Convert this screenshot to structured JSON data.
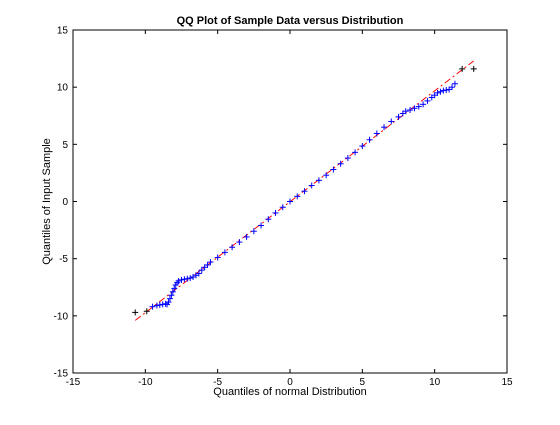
{
  "chart_data": {
    "type": "scatter",
    "title": "QQ Plot of Sample Data versus Distribution",
    "xlabel": "Quantiles of normal Distribution",
    "ylabel": "Quantiles of Input Sample",
    "xlim": [
      -15,
      15
    ],
    "ylim": [
      -15,
      15
    ],
    "xticks": [
      -15,
      -10,
      -5,
      0,
      5,
      10,
      15
    ],
    "yticks": [
      -15,
      -10,
      -5,
      0,
      5,
      10,
      15
    ],
    "grid": false,
    "series": [
      {
        "marker": "+",
        "color": "#0000ff",
        "points": [
          [
            -10.7,
            -9.7
          ],
          [
            -9.9,
            -9.6
          ],
          [
            -9.5,
            -9.2
          ],
          [
            -9.2,
            -9.1
          ],
          [
            -9.0,
            -9.05
          ],
          [
            -8.8,
            -9.0
          ],
          [
            -8.6,
            -8.95
          ],
          [
            -8.5,
            -9.0
          ],
          [
            -8.4,
            -8.8
          ],
          [
            -8.3,
            -8.5
          ],
          [
            -8.2,
            -8.2
          ],
          [
            -8.1,
            -7.9
          ],
          [
            -8.0,
            -7.6
          ],
          [
            -7.9,
            -7.3
          ],
          [
            -7.8,
            -7.1
          ],
          [
            -7.7,
            -6.95
          ],
          [
            -7.5,
            -6.85
          ],
          [
            -7.3,
            -6.8
          ],
          [
            -7.1,
            -6.75
          ],
          [
            -6.9,
            -6.7
          ],
          [
            -6.7,
            -6.6
          ],
          [
            -6.5,
            -6.45
          ],
          [
            -6.3,
            -6.3
          ],
          [
            -6.1,
            -6.0
          ],
          [
            -5.9,
            -5.75
          ],
          [
            -5.7,
            -5.55
          ],
          [
            -5.5,
            -5.3
          ],
          [
            -5.0,
            -4.9
          ],
          [
            -4.5,
            -4.45
          ],
          [
            -4.0,
            -4.0
          ],
          [
            -3.5,
            -3.55
          ],
          [
            -3.0,
            -3.1
          ],
          [
            -2.5,
            -2.6
          ],
          [
            -2.0,
            -2.1
          ],
          [
            -1.5,
            -1.55
          ],
          [
            -1.0,
            -1.0
          ],
          [
            -0.5,
            -0.5
          ],
          [
            0.0,
            0.0
          ],
          [
            0.5,
            0.45
          ],
          [
            1.0,
            0.9
          ],
          [
            1.5,
            1.4
          ],
          [
            2.0,
            1.85
          ],
          [
            2.5,
            2.3
          ],
          [
            3.0,
            2.8
          ],
          [
            3.5,
            3.3
          ],
          [
            4.0,
            3.8
          ],
          [
            4.5,
            4.3
          ],
          [
            5.0,
            4.85
          ],
          [
            5.5,
            5.4
          ],
          [
            6.0,
            5.95
          ],
          [
            6.5,
            6.5
          ],
          [
            7.0,
            7.0
          ],
          [
            7.5,
            7.4
          ],
          [
            7.8,
            7.7
          ],
          [
            8.0,
            7.9
          ],
          [
            8.3,
            8.0
          ],
          [
            8.6,
            8.15
          ],
          [
            8.9,
            8.3
          ],
          [
            9.2,
            8.5
          ],
          [
            9.5,
            8.8
          ],
          [
            9.8,
            9.1
          ],
          [
            10.0,
            9.3
          ],
          [
            10.2,
            9.5
          ],
          [
            10.4,
            9.6
          ],
          [
            10.6,
            9.7
          ],
          [
            10.8,
            9.75
          ],
          [
            11.0,
            9.8
          ],
          [
            11.2,
            10.0
          ],
          [
            11.4,
            10.3
          ],
          [
            11.9,
            11.6
          ],
          [
            12.7,
            11.6
          ]
        ]
      }
    ],
    "reference_line": {
      "style": "dash-dot",
      "color": "#ff0000",
      "x": [
        -10.7,
        12.7
      ],
      "y": [
        -10.4,
        12.3
      ]
    }
  }
}
